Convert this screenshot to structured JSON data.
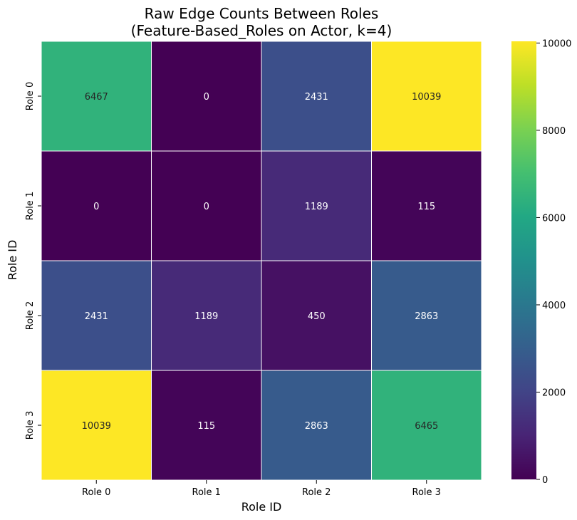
{
  "chart_data": {
    "type": "heatmap",
    "title_line1": "Raw Edge Counts Between Roles",
    "title_line2": "(Feature-Based_Roles on Actor, k=4)",
    "xlabel": "Role ID",
    "ylabel": "Role ID",
    "x_categories": [
      "Role 0",
      "Role 1",
      "Role 2",
      "Role 3"
    ],
    "y_categories": [
      "Role 0",
      "Role 1",
      "Role 2",
      "Role 3"
    ],
    "values": [
      [
        6467,
        0,
        2431,
        10039
      ],
      [
        0,
        0,
        1189,
        115
      ],
      [
        2431,
        1189,
        450,
        2863
      ],
      [
        10039,
        115,
        2863,
        6465
      ]
    ],
    "colormap": "viridis",
    "vmin": 0,
    "vmax": 10039,
    "colorbar_ticks": [
      0,
      2000,
      4000,
      6000,
      8000,
      10000
    ]
  }
}
